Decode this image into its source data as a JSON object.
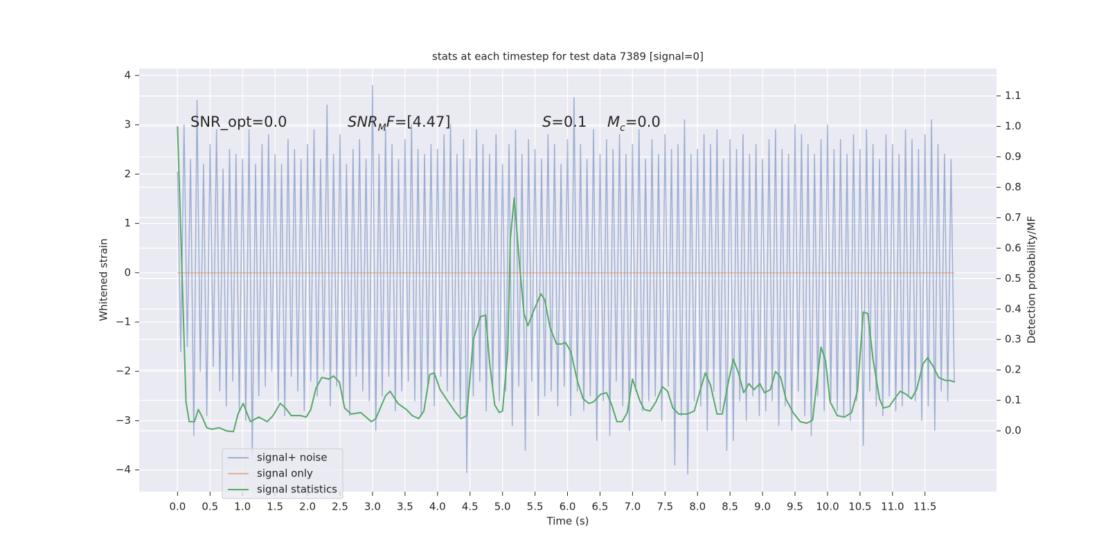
{
  "chart_data": {
    "type": "line",
    "title": "stats at each timestep for test data 7389 [signal=0]",
    "xlabel": "Time (s)",
    "ylabel": "Whitened strain",
    "y2label": "Detection probability/MF",
    "xlim": [
      -0.59,
      12.6
    ],
    "ylim": [
      -4.44,
      4.14
    ],
    "y2lim": [
      -0.2,
      1.19
    ],
    "xticks": [
      {
        "value": 0,
        "label": "0.0"
      },
      0.5,
      {
        "value": 1,
        "label": "1.0"
      },
      1.5,
      {
        "value": 2,
        "label": "2.0"
      },
      2.5,
      {
        "value": 3,
        "label": "3.0"
      },
      3.5,
      {
        "value": 4,
        "label": "4.0"
      },
      4.5,
      {
        "value": 5,
        "label": "5.0"
      },
      5.5,
      {
        "value": 6,
        "label": "6.0"
      },
      6.5,
      {
        "value": 7,
        "label": "7.0"
      },
      7.5,
      {
        "value": 8,
        "label": "8.0"
      },
      8.5,
      {
        "value": 9,
        "label": "9.0"
      },
      9.5,
      {
        "value": 10,
        "label": "10.0"
      },
      10.5,
      {
        "value": 11,
        "label": "11.0"
      },
      11.5
    ],
    "yticks": [
      {
        "value": -4,
        "label": "−4"
      },
      {
        "value": -3,
        "label": "−3"
      },
      {
        "value": -2,
        "label": "−2"
      },
      {
        "value": -1,
        "label": "−1"
      },
      0,
      1,
      2,
      3,
      4
    ],
    "y2ticks": [
      {
        "value": 0,
        "label": "0.0"
      },
      0.1,
      0.2,
      0.3,
      0.4,
      0.5,
      0.6,
      0.7,
      0.8,
      0.9,
      {
        "value": 1,
        "label": "1.0"
      },
      1.1
    ],
    "grid": true,
    "legend": "lower left",
    "annotations": [
      [
        {
          "text": "SNR_opt=0.0"
        }
      ],
      [
        {
          "text": "SNR",
          "style": "italic"
        },
        {
          "text": "M",
          "style": "sub"
        },
        {
          "text": "F",
          "style": "italic"
        },
        {
          "text": "=[4.47]"
        }
      ],
      [
        {
          "text": "S",
          "style": "italic"
        },
        {
          "text": "=0.1"
        }
      ],
      [
        {
          "text": "M",
          "style": "italic"
        },
        {
          "text": "c",
          "style": "sub"
        },
        {
          "text": "=0.0"
        }
      ]
    ],
    "series": [
      {
        "name": "signal+ noise",
        "color": "#4c72b0",
        "alpha": 0.5,
        "x": [
          0,
          0.05,
          0.1,
          0.15,
          0.2,
          0.25,
          0.3,
          0.35,
          0.4,
          0.45,
          0.5,
          0.55,
          0.6,
          0.65,
          0.7,
          0.75,
          0.8,
          0.85,
          0.9,
          0.95,
          1,
          1.05,
          1.1,
          1.15,
          1.2,
          1.25,
          1.3,
          1.35,
          1.4,
          1.45,
          1.5,
          1.55,
          1.6,
          1.65,
          1.7,
          1.75,
          1.8,
          1.85,
          1.9,
          1.95,
          2,
          2.05,
          2.1,
          2.15,
          2.2,
          2.25,
          2.3,
          2.35,
          2.4,
          2.45,
          2.5,
          2.55,
          2.6,
          2.65,
          2.7,
          2.75,
          2.8,
          2.85,
          2.9,
          2.95,
          3,
          3.05,
          3.1,
          3.15,
          3.2,
          3.25,
          3.3,
          3.35,
          3.4,
          3.45,
          3.5,
          3.55,
          3.6,
          3.65,
          3.7,
          3.75,
          3.8,
          3.85,
          3.9,
          3.95,
          4,
          4.05,
          4.1,
          4.15,
          4.2,
          4.25,
          4.3,
          4.35,
          4.4,
          4.45,
          4.5,
          4.55,
          4.6,
          4.65,
          4.7,
          4.75,
          4.8,
          4.85,
          4.9,
          4.95,
          5,
          5.05,
          5.1,
          5.15,
          5.2,
          5.25,
          5.3,
          5.35,
          5.4,
          5.45,
          5.5,
          5.55,
          5.6,
          5.65,
          5.7,
          5.75,
          5.8,
          5.85,
          5.9,
          5.95,
          6,
          6.05,
          6.1,
          6.15,
          6.2,
          6.25,
          6.3,
          6.35,
          6.4,
          6.45,
          6.5,
          6.55,
          6.6,
          6.65,
          6.7,
          6.75,
          6.8,
          6.85,
          6.9,
          6.95,
          7,
          7.05,
          7.1,
          7.15,
          7.2,
          7.25,
          7.3,
          7.35,
          7.4,
          7.45,
          7.5,
          7.55,
          7.6,
          7.65,
          7.7,
          7.75,
          7.8,
          7.85,
          7.9,
          7.95,
          8,
          8.05,
          8.1,
          8.15,
          8.2,
          8.25,
          8.3,
          8.35,
          8.4,
          8.45,
          8.5,
          8.55,
          8.6,
          8.65,
          8.7,
          8.75,
          8.8,
          8.85,
          8.9,
          8.95,
          9,
          9.05,
          9.1,
          9.15,
          9.2,
          9.25,
          9.3,
          9.35,
          9.4,
          9.45,
          9.5,
          9.55,
          9.6,
          9.65,
          9.7,
          9.75,
          9.8,
          9.85,
          9.9,
          9.95,
          10,
          10.05,
          10.1,
          10.15,
          10.2,
          10.25,
          10.3,
          10.35,
          10.4,
          10.45,
          10.5,
          10.55,
          10.6,
          10.65,
          10.7,
          10.75,
          10.8,
          10.85,
          10.9,
          10.95,
          11,
          11.05,
          11.1,
          11.15,
          11.2,
          11.25,
          11.3,
          11.35,
          11.4,
          11.45,
          11.5,
          11.55,
          11.6,
          11.65,
          11.7,
          11.75,
          11.8,
          11.85,
          11.9,
          11.95
        ],
        "values": [
          2.05,
          -1.6,
          3.0,
          -1.5,
          2.3,
          -3.3,
          3.5,
          -2.0,
          2.2,
          -2.9,
          2.6,
          -1.9,
          2.9,
          -2.4,
          2.1,
          -2.7,
          2.5,
          -2.2,
          2.4,
          -2.8,
          2.3,
          -3.0,
          2.9,
          -3.7,
          2.2,
          -2.5,
          2.6,
          -2.3,
          2.8,
          -2.0,
          2.4,
          -2.6,
          2.2,
          -2.9,
          2.7,
          -2.1,
          2.5,
          -2.4,
          2.3,
          -2.8,
          2.6,
          -2.2,
          2.9,
          -2.5,
          2.3,
          -2.0,
          3.4,
          -2.7,
          2.4,
          -2.3,
          2.8,
          -2.6,
          2.2,
          -2.9,
          2.5,
          -2.1,
          2.7,
          -2.4,
          2.3,
          -2.6,
          3.8,
          -3.2,
          2.4,
          -2.5,
          2.9,
          -2.1,
          2.6,
          -2.8,
          2.3,
          -2.4,
          2.7,
          -2.2,
          3.0,
          -2.6,
          2.5,
          -2.9,
          2.4,
          -2.3,
          2.6,
          -2.7,
          2.5,
          -2.1,
          2.8,
          -2.4,
          3.0,
          -2.6,
          2.4,
          -2.9,
          2.7,
          -4.05,
          2.3,
          -2.5,
          2.9,
          -2.2,
          2.6,
          -2.8,
          2.4,
          -2.3,
          2.8,
          -2.6,
          2.2,
          -2.4,
          2.6,
          -3.1,
          2.9,
          -2.3,
          2.4,
          -3.6,
          2.7,
          -2.2,
          2.5,
          -2.9,
          2.3,
          -2.5,
          2.8,
          -2.4,
          2.6,
          -2.7,
          2.2,
          -2.3,
          2.7,
          -2.9,
          3.55,
          -2.4,
          2.6,
          -2.8,
          2.3,
          -2.5,
          2.9,
          -3.4,
          2.4,
          -2.6,
          2.7,
          -3.3,
          2.5,
          -2.2,
          2.8,
          -2.7,
          2.4,
          -3.2,
          2.6,
          -2.4,
          2.9,
          -2.8,
          2.3,
          -2.6,
          2.7,
          -2.5,
          2.4,
          -3.0,
          2.8,
          -2.3,
          2.5,
          -3.9,
          2.6,
          -2.9,
          3.1,
          -4.08,
          2.4,
          -2.6,
          2.5,
          -2.7,
          2.8,
          -3.2,
          2.6,
          -2.4,
          2.9,
          -2.8,
          2.3,
          -3.6,
          2.7,
          -3.4,
          2.5,
          -2.6,
          2.8,
          -3.0,
          2.4,
          -2.5,
          2.6,
          -2.9,
          2.3,
          -2.8,
          2.7,
          -2.6,
          2.9,
          -3.1,
          2.5,
          -2.7,
          2.4,
          -3.2,
          3.0,
          -2.4,
          2.8,
          -2.9,
          2.6,
          -3.3,
          2.4,
          -2.5,
          2.7,
          -2.8,
          3.0,
          -2.6,
          2.5,
          -2.8,
          2.7,
          -2.9,
          2.4,
          -3.0,
          2.8,
          -2.6,
          2.5,
          -3.5,
          2.9,
          -2.4,
          2.6,
          -2.7,
          2.3,
          -2.9,
          2.8,
          -2.5,
          2.6,
          -2.8,
          2.4,
          -2.7,
          2.9,
          -2.5,
          2.7,
          -2.6,
          2.5,
          -3.0,
          2.8,
          -2.7,
          3.1,
          -3.2,
          2.6,
          -2.4,
          2.4,
          -2.6,
          2.3,
          -2.2
        ]
      },
      {
        "name": "signal only",
        "color": "#dd8452",
        "alpha": 0.6,
        "x": [
          0,
          11.95
        ],
        "values": [
          0,
          0
        ]
      },
      {
        "name": "signal statistics",
        "color": "#55a868",
        "axis": "y2",
        "x": [
          0,
          0.13,
          0.18,
          0.26,
          0.32,
          0.38,
          0.45,
          0.53,
          0.64,
          0.75,
          0.86,
          0.93,
          1.01,
          1.12,
          1.25,
          1.38,
          1.47,
          1.58,
          1.66,
          1.75,
          1.89,
          1.98,
          2.05,
          2.13,
          2.22,
          2.33,
          2.4,
          2.49,
          2.57,
          2.67,
          2.82,
          2.98,
          3.05,
          3.2,
          3.27,
          3.39,
          3.52,
          3.61,
          3.71,
          3.79,
          3.88,
          3.95,
          4.04,
          4.15,
          4.28,
          4.36,
          4.45,
          4.55,
          4.66,
          4.74,
          4.8,
          4.88,
          4.95,
          5.0,
          5.08,
          5.12,
          5.18,
          5.26,
          5.33,
          5.39,
          5.49,
          5.59,
          5.65,
          5.73,
          5.83,
          5.91,
          5.97,
          6.05,
          6.15,
          6.24,
          6.33,
          6.4,
          6.51,
          6.6,
          6.68,
          6.76,
          6.84,
          6.92,
          7.0,
          7.11,
          7.18,
          7.27,
          7.36,
          7.46,
          7.54,
          7.62,
          7.71,
          7.84,
          7.95,
          8.03,
          8.12,
          8.2,
          8.3,
          8.38,
          8.47,
          8.55,
          8.63,
          8.71,
          8.79,
          8.87,
          8.96,
          9.03,
          9.12,
          9.2,
          9.28,
          9.36,
          9.47,
          9.58,
          9.68,
          9.77,
          9.84,
          9.9,
          9.97,
          10.04,
          10.15,
          10.26,
          10.37,
          10.46,
          10.55,
          10.62,
          10.7,
          10.8,
          10.86,
          10.95,
          11.03,
          11.12,
          11.21,
          11.29,
          11.37,
          11.47,
          11.54,
          11.63,
          11.71,
          11.82,
          11.89,
          11.96
        ],
        "values": [
          1.0,
          0.095,
          0.03,
          0.03,
          0.07,
          0.045,
          0.01,
          0.005,
          0.01,
          0.0,
          -0.003,
          0.055,
          0.09,
          0.03,
          0.045,
          0.03,
          0.05,
          0.09,
          0.075,
          0.05,
          0.05,
          0.045,
          0.07,
          0.14,
          0.175,
          0.17,
          0.18,
          0.16,
          0.075,
          0.055,
          0.06,
          0.03,
          0.04,
          0.115,
          0.13,
          0.09,
          0.07,
          0.05,
          0.04,
          0.065,
          0.185,
          0.19,
          0.135,
          0.1,
          0.06,
          0.04,
          0.05,
          0.3,
          0.375,
          0.38,
          0.225,
          0.085,
          0.06,
          0.065,
          0.26,
          0.63,
          0.765,
          0.55,
          0.385,
          0.345,
          0.4,
          0.45,
          0.43,
          0.34,
          0.285,
          0.285,
          0.29,
          0.26,
          0.165,
          0.105,
          0.09,
          0.095,
          0.12,
          0.125,
          0.085,
          0.03,
          0.03,
          0.06,
          0.17,
          0.1,
          0.07,
          0.065,
          0.095,
          0.145,
          0.13,
          0.075,
          0.055,
          0.055,
          0.065,
          0.125,
          0.19,
          0.15,
          0.055,
          0.055,
          0.155,
          0.235,
          0.19,
          0.125,
          0.155,
          0.135,
          0.155,
          0.125,
          0.135,
          0.195,
          0.175,
          0.105,
          0.06,
          0.03,
          0.025,
          0.035,
          0.165,
          0.275,
          0.23,
          0.095,
          0.05,
          0.045,
          0.06,
          0.13,
          0.39,
          0.385,
          0.235,
          0.105,
          0.075,
          0.08,
          0.105,
          0.13,
          0.12,
          0.105,
          0.135,
          0.22,
          0.24,
          0.21,
          0.175,
          0.165,
          0.165,
          0.16
        ]
      }
    ]
  }
}
